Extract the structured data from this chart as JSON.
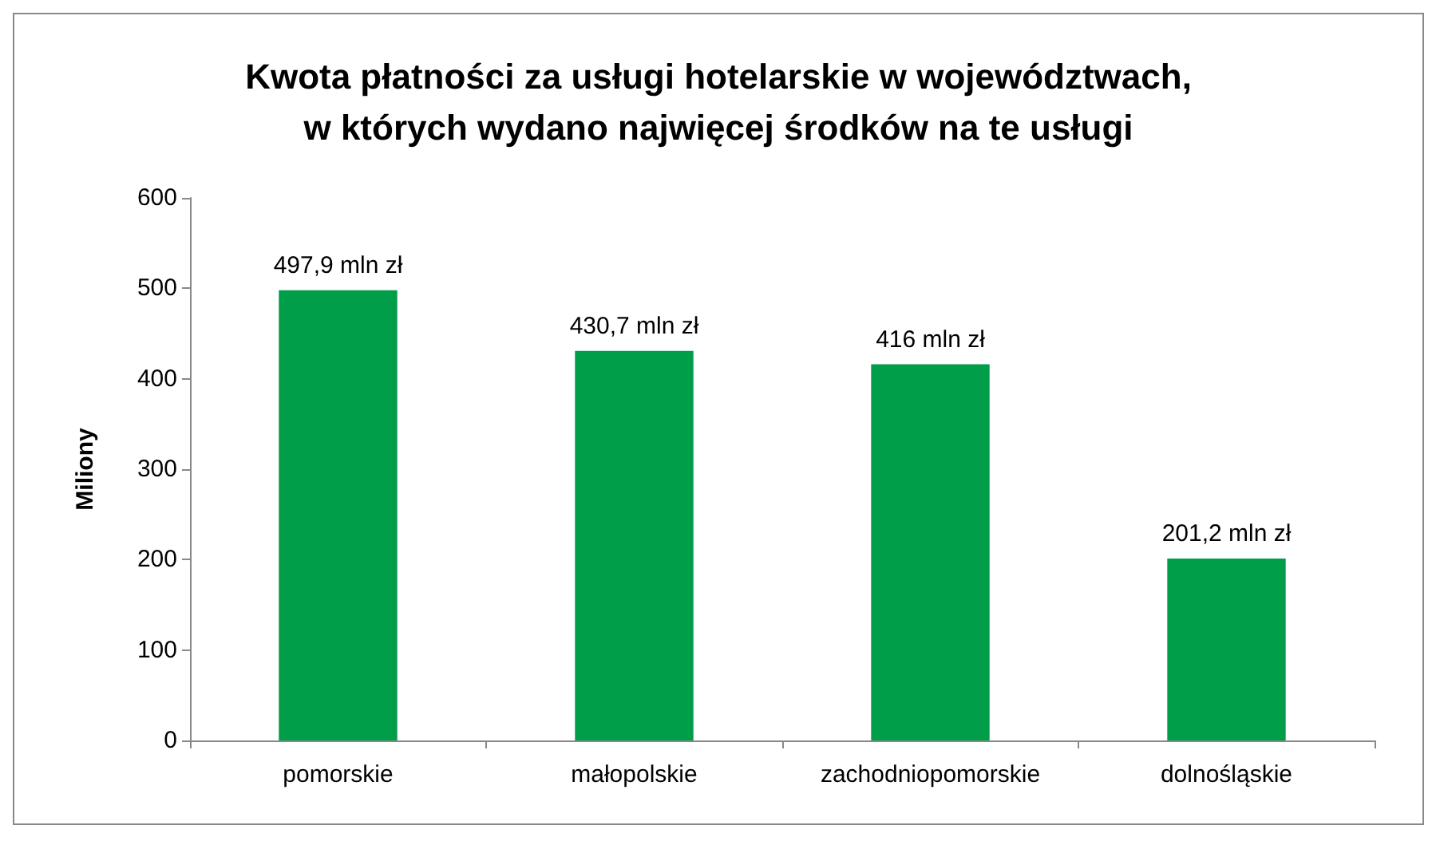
{
  "chart_data": {
    "type": "bar",
    "title": "Kwota płatności za usługi hotelarskie w województwach,\nw których wydano najwięcej środków na te usługi",
    "ylabel": "Miliony",
    "categories": [
      "pomorskie",
      "małopolskie",
      "zachodniopomorskie",
      "dolnośląskie"
    ],
    "values": [
      497.9,
      430.7,
      416,
      201.2
    ],
    "value_labels": [
      "497,9 mln zł",
      "430,7 mln zł",
      "416 mln zł",
      "201,2 mln zł"
    ],
    "color": "#009e49",
    "ylim": [
      0,
      600
    ],
    "yticks": [
      0,
      100,
      200,
      300,
      400,
      500,
      600
    ],
    "grid": false
  }
}
